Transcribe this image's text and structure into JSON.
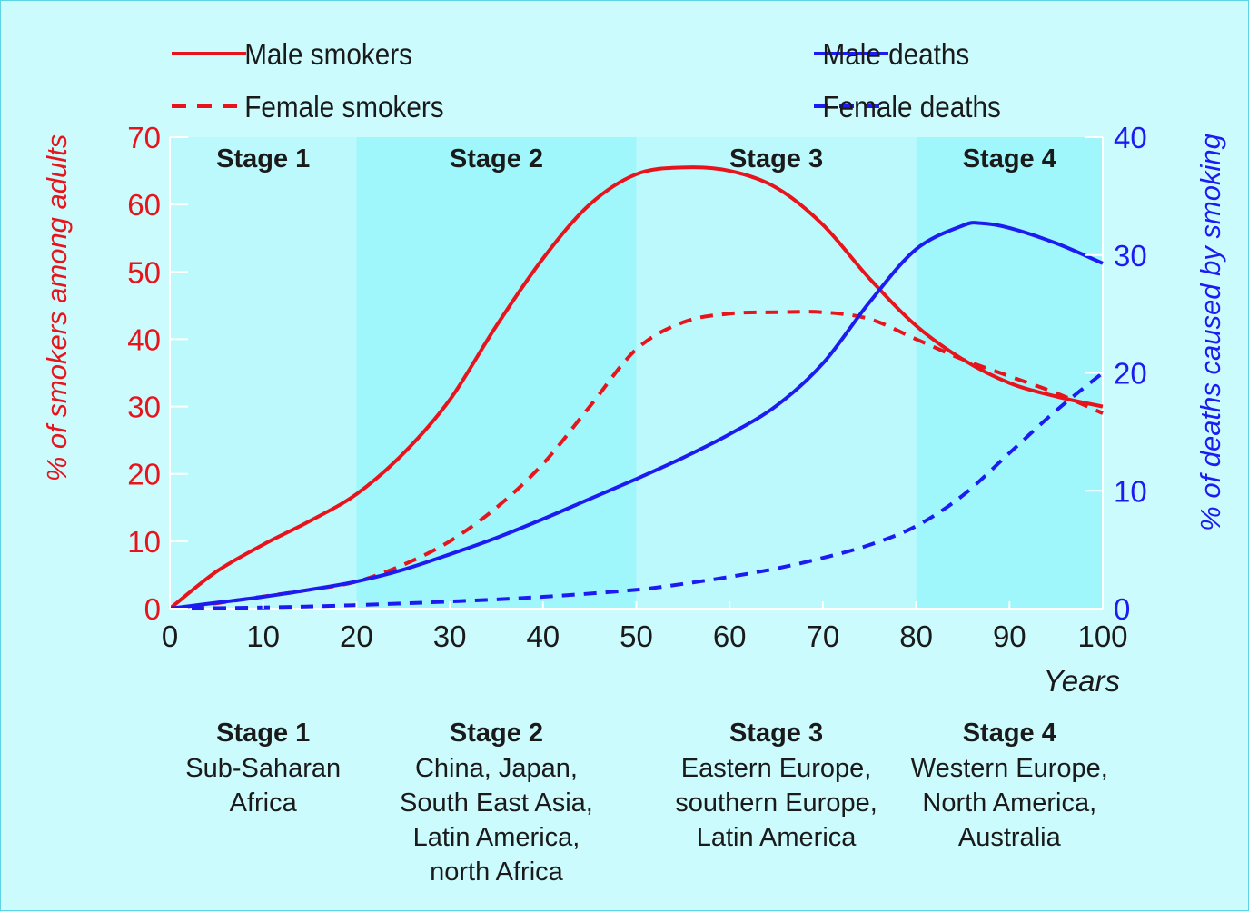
{
  "chart_data": {
    "type": "line",
    "title": "",
    "xlabel": "Years",
    "ylabel_left": "% of smokers among adults",
    "ylabel_right": "% of deaths caused by smoking",
    "xlim": [
      0,
      100
    ],
    "ylim_left": [
      0,
      70
    ],
    "ylim_right": [
      0,
      40
    ],
    "x_ticks": [
      0,
      10,
      20,
      30,
      40,
      50,
      60,
      70,
      80,
      90,
      100
    ],
    "y_left_ticks": [
      0,
      10,
      20,
      30,
      40,
      50,
      60,
      70
    ],
    "y_right_ticks": [
      0,
      10,
      20,
      30,
      40
    ],
    "grid": false,
    "legend_placement": "top",
    "colors": {
      "smokers": "#e8141c",
      "deaths": "#1c1cf2",
      "band_dark": "#9ff6fb",
      "band_light": "#bcf9fc",
      "background": "#ccfbfd"
    },
    "stages": [
      {
        "label": "Stage 1",
        "x_start": 0,
        "x_end": 20,
        "shade": "light",
        "regions": [
          "Sub-Saharan",
          "Africa"
        ]
      },
      {
        "label": "Stage 2",
        "x_start": 20,
        "x_end": 50,
        "shade": "dark",
        "regions": [
          "China, Japan,",
          "South East Asia,",
          "Latin America,",
          "north Africa"
        ]
      },
      {
        "label": "Stage 3",
        "x_start": 50,
        "x_end": 80,
        "shade": "light",
        "regions": [
          "Eastern Europe,",
          "southern Europe,",
          "Latin America"
        ]
      },
      {
        "label": "Stage 4",
        "x_start": 80,
        "x_end": 100,
        "shade": "dark",
        "regions": [
          "Western Europe,",
          "North America,",
          "Australia"
        ]
      }
    ],
    "series": [
      {
        "name": "Male smokers",
        "axis": "left",
        "color": "#e8141c",
        "dash": "solid",
        "x": [
          0,
          5,
          10,
          15,
          20,
          25,
          30,
          35,
          40,
          45,
          50,
          55,
          60,
          65,
          70,
          75,
          80,
          85,
          90,
          95,
          100
        ],
        "y": [
          0,
          5.5,
          9.5,
          13,
          17,
          23,
          31,
          42,
          52,
          60,
          64.5,
          65.5,
          65,
          62.5,
          57,
          49,
          42,
          37,
          33.5,
          31.5,
          30
        ]
      },
      {
        "name": "Female smokers",
        "axis": "left",
        "color": "#e8141c",
        "dash": "dashed",
        "x": [
          0,
          5,
          10,
          15,
          20,
          25,
          30,
          35,
          40,
          45,
          50,
          55,
          60,
          65,
          70,
          75,
          80,
          85,
          90,
          95,
          100
        ],
        "y": [
          0,
          0.8,
          1.8,
          2.8,
          4,
          6.5,
          10,
          15,
          21.5,
          30,
          38.5,
          42.5,
          43.8,
          44,
          44,
          43,
          40,
          37,
          34.5,
          32,
          29
        ]
      },
      {
        "name": "Male deaths",
        "axis": "right",
        "color": "#1c1cf2",
        "dash": "solid",
        "x": [
          0,
          5,
          10,
          15,
          20,
          25,
          30,
          35,
          40,
          45,
          50,
          55,
          60,
          65,
          70,
          75,
          80,
          85,
          87,
          90,
          95,
          100
        ],
        "y": [
          0,
          0.5,
          1,
          1.6,
          2.3,
          3.3,
          4.6,
          6,
          7.6,
          9.3,
          11,
          12.8,
          14.8,
          17.2,
          20.8,
          26,
          30.5,
          32.5,
          32.7,
          32.3,
          31,
          29.3
        ]
      },
      {
        "name": "Female deaths",
        "axis": "right",
        "color": "#1c1cf2",
        "dash": "dashed",
        "x": [
          0,
          10,
          20,
          30,
          40,
          50,
          55,
          60,
          65,
          70,
          75,
          80,
          85,
          90,
          95,
          100
        ],
        "y": [
          0,
          0.1,
          0.3,
          0.6,
          1,
          1.6,
          2.1,
          2.7,
          3.4,
          4.3,
          5.4,
          7,
          9.6,
          13.2,
          16.8,
          20
        ]
      }
    ]
  }
}
